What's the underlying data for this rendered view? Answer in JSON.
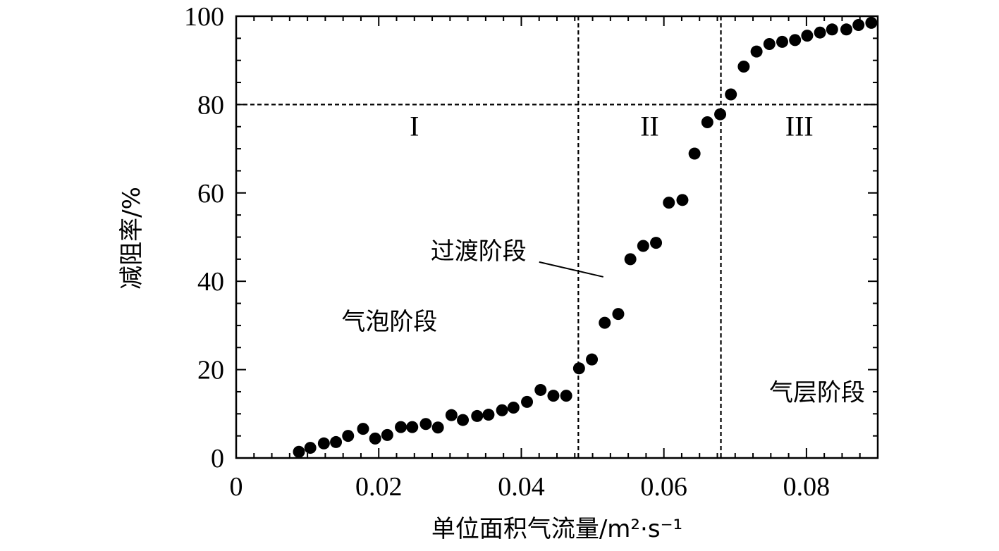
{
  "chart_data": {
    "type": "scatter",
    "xlabel": "单位面积气流量/m²·s⁻¹",
    "ylabel": "减阻率/%",
    "xlim": [
      0,
      0.09
    ],
    "ylim": [
      0,
      100
    ],
    "x_ticks": [
      0,
      0.02,
      0.04,
      0.06,
      0.08
    ],
    "x_tick_labels": [
      "0",
      "0.02",
      "0.04",
      "0.06",
      "0.08"
    ],
    "y_ticks": [
      0,
      20,
      40,
      60,
      80,
      100
    ],
    "y_tick_labels": [
      "0",
      "20",
      "40",
      "60",
      "80",
      "100"
    ],
    "grid": false,
    "marker_color": "#000000",
    "reference_lines": [
      {
        "orientation": "vertical",
        "value": 0.048,
        "style": "dashed"
      },
      {
        "orientation": "vertical",
        "value": 0.068,
        "style": "dashed"
      },
      {
        "orientation": "horizontal",
        "value": 80,
        "style": "dashed"
      }
    ],
    "regions": [
      {
        "label": "I",
        "x": 0.025,
        "y": 73
      },
      {
        "label": "II",
        "x": 0.058,
        "y": 73
      },
      {
        "label": "III",
        "x": 0.079,
        "y": 73
      }
    ],
    "annotations": [
      {
        "text": "气泡阶段",
        "x": 0.0215,
        "y": 29
      },
      {
        "text": "过渡阶段",
        "x": 0.034,
        "y": 45,
        "pointer_to": [
          0.0515,
          41
        ]
      },
      {
        "text": "气层阶段",
        "x": 0.0815,
        "y": 13
      }
    ],
    "series": [
      {
        "points": [
          [
            0.0088,
            1.4
          ],
          [
            0.0104,
            2.3
          ],
          [
            0.0123,
            3.3
          ],
          [
            0.014,
            3.6
          ],
          [
            0.0157,
            5.0
          ],
          [
            0.0178,
            6.6
          ],
          [
            0.0195,
            4.4
          ],
          [
            0.0212,
            5.2
          ],
          [
            0.0231,
            7.0
          ],
          [
            0.0247,
            7.0
          ],
          [
            0.0266,
            7.7
          ],
          [
            0.0283,
            6.9
          ],
          [
            0.0302,
            9.7
          ],
          [
            0.0318,
            8.6
          ],
          [
            0.0338,
            9.5
          ],
          [
            0.0354,
            9.8
          ],
          [
            0.0373,
            10.8
          ],
          [
            0.0389,
            11.4
          ],
          [
            0.0408,
            12.7
          ],
          [
            0.0427,
            15.4
          ],
          [
            0.0445,
            14.1
          ],
          [
            0.0463,
            14.1
          ],
          [
            0.0481,
            20.3
          ],
          [
            0.0499,
            22.3
          ],
          [
            0.0517,
            30.6
          ],
          [
            0.0536,
            32.6
          ],
          [
            0.0553,
            45.0
          ],
          [
            0.0571,
            48.0
          ],
          [
            0.0589,
            48.7
          ],
          [
            0.0607,
            57.8
          ],
          [
            0.0626,
            58.4
          ],
          [
            0.0643,
            68.9
          ],
          [
            0.0661,
            76.0
          ],
          [
            0.0679,
            77.8
          ],
          [
            0.0694,
            82.3
          ],
          [
            0.0712,
            88.6
          ],
          [
            0.073,
            92.0
          ],
          [
            0.0748,
            93.7
          ],
          [
            0.0766,
            94.2
          ],
          [
            0.0784,
            94.6
          ],
          [
            0.0801,
            95.6
          ],
          [
            0.0819,
            96.3
          ],
          [
            0.0836,
            97.0
          ],
          [
            0.0856,
            97.0
          ],
          [
            0.0873,
            98.0
          ],
          [
            0.0891,
            98.5
          ]
        ]
      }
    ]
  }
}
